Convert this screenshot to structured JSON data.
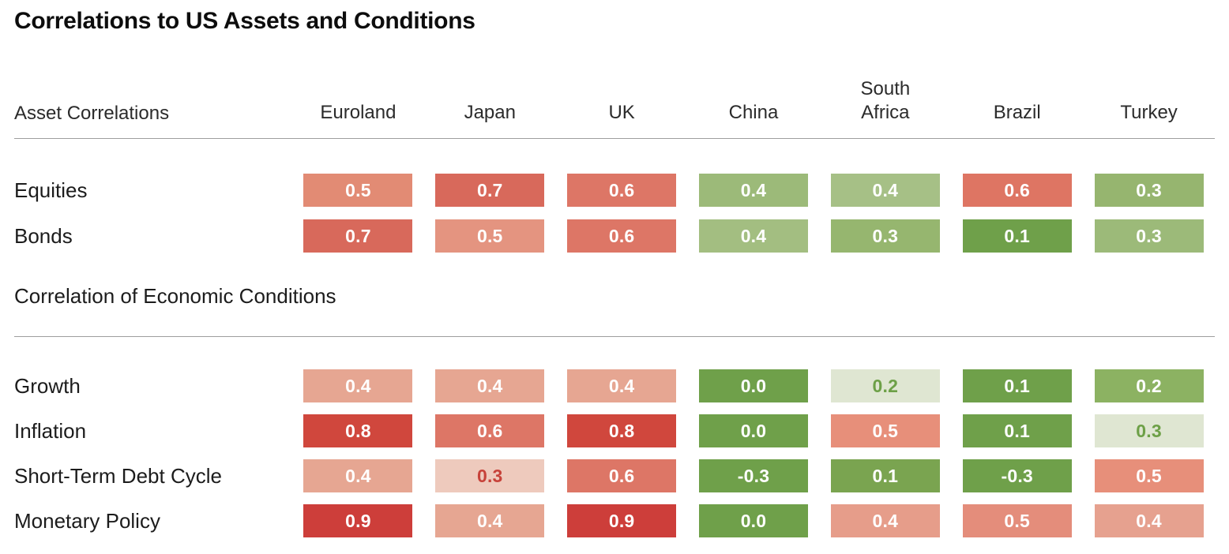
{
  "title": "Correlations to US Assets and Conditions",
  "colors": {
    "divider": "#9e9e9e",
    "cell_text_default": "#ffffff",
    "cell_text_green": "#6da047",
    "cell_text_red": "#c7423a"
  },
  "table": {
    "columns": [
      "Euroland",
      "Japan",
      "UK",
      "China",
      "South\nAfrica",
      "Brazil",
      "Turkey"
    ],
    "sections": [
      {
        "title": "Asset Correlations",
        "rows": [
          {
            "label": "Equities",
            "cells": [
              {
                "value": "0.5",
                "bg": "#e28b74"
              },
              {
                "value": "0.7",
                "bg": "#d8695b"
              },
              {
                "value": "0.6",
                "bg": "#dd7666"
              },
              {
                "value": "0.4",
                "bg": "#9cba79"
              },
              {
                "value": "0.4",
                "bg": "#a6c086"
              },
              {
                "value": "0.6",
                "bg": "#de7563"
              },
              {
                "value": "0.3",
                "bg": "#96b56f"
              }
            ]
          },
          {
            "label": "Bonds",
            "cells": [
              {
                "value": "0.7",
                "bg": "#d8695b"
              },
              {
                "value": "0.5",
                "bg": "#e49480"
              },
              {
                "value": "0.6",
                "bg": "#dd7666"
              },
              {
                "value": "0.4",
                "bg": "#a3be81"
              },
              {
                "value": "0.3",
                "bg": "#96b66f"
              },
              {
                "value": "0.1",
                "bg": "#6fa04a"
              },
              {
                "value": "0.3",
                "bg": "#9cba79"
              }
            ]
          }
        ]
      },
      {
        "title": "Correlation of Economic Conditions",
        "rows": [
          {
            "label": "Growth",
            "cells": [
              {
                "value": "0.4",
                "bg": "#e6a692"
              },
              {
                "value": "0.4",
                "bg": "#e6a692"
              },
              {
                "value": "0.4",
                "bg": "#e6a692"
              },
              {
                "value": "0.0",
                "bg": "#6fa04a"
              },
              {
                "value": "0.2",
                "bg": "#dfe6d2",
                "fg": "#6da047"
              },
              {
                "value": "0.1",
                "bg": "#6fa04a"
              },
              {
                "value": "0.2",
                "bg": "#8cb262"
              }
            ]
          },
          {
            "label": "Inflation",
            "cells": [
              {
                "value": "0.8",
                "bg": "#d0473d"
              },
              {
                "value": "0.6",
                "bg": "#dd7666"
              },
              {
                "value": "0.8",
                "bg": "#d0473d"
              },
              {
                "value": "0.0",
                "bg": "#6fa04a"
              },
              {
                "value": "0.5",
                "bg": "#e78f7a"
              },
              {
                "value": "0.1",
                "bg": "#6fa04a"
              },
              {
                "value": "0.3",
                "bg": "#dfe6d2",
                "fg": "#6da047"
              }
            ]
          },
          {
            "label": "Short-Term Debt Cycle",
            "cells": [
              {
                "value": "0.4",
                "bg": "#e6a692"
              },
              {
                "value": "0.3",
                "bg": "#eecabd",
                "fg": "#c7423a"
              },
              {
                "value": "0.6",
                "bg": "#dd7666"
              },
              {
                "value": "-0.3",
                "bg": "#6fa04a"
              },
              {
                "value": "0.1",
                "bg": "#7aa450"
              },
              {
                "value": "-0.3",
                "bg": "#6fa04a"
              },
              {
                "value": "0.5",
                "bg": "#e78f7a"
              }
            ]
          },
          {
            "label": "Monetary Policy",
            "cells": [
              {
                "value": "0.9",
                "bg": "#cd3e3a"
              },
              {
                "value": "0.4",
                "bg": "#e6a692"
              },
              {
                "value": "0.9",
                "bg": "#cd3e3a"
              },
              {
                "value": "0.0",
                "bg": "#6fa04a"
              },
              {
                "value": "0.4",
                "bg": "#e69d8a"
              },
              {
                "value": "0.5",
                "bg": "#e48d7b"
              },
              {
                "value": "0.4",
                "bg": "#e6a18f"
              }
            ]
          }
        ]
      }
    ]
  },
  "chart_data": {
    "type": "heatmap",
    "title": "Correlations to US Assets and Conditions",
    "columns": [
      "Euroland",
      "Japan",
      "UK",
      "China",
      "South Africa",
      "Brazil",
      "Turkey"
    ],
    "sections": [
      {
        "header": "Asset Correlations",
        "rows": [
          {
            "label": "Equities",
            "values": [
              0.5,
              0.7,
              0.6,
              0.4,
              0.4,
              0.6,
              0.3
            ]
          },
          {
            "label": "Bonds",
            "values": [
              0.7,
              0.5,
              0.6,
              0.4,
              0.3,
              0.1,
              0.3
            ]
          }
        ]
      },
      {
        "header": "Correlation of Economic Conditions",
        "rows": [
          {
            "label": "Growth",
            "values": [
              0.4,
              0.4,
              0.4,
              0.0,
              0.2,
              0.1,
              0.2
            ]
          },
          {
            "label": "Inflation",
            "values": [
              0.8,
              0.6,
              0.8,
              0.0,
              0.5,
              0.1,
              0.3
            ]
          },
          {
            "label": "Short-Term Debt Cycle",
            "values": [
              0.4,
              0.3,
              0.6,
              -0.3,
              0.1,
              -0.3,
              0.5
            ]
          },
          {
            "label": "Monetary Policy",
            "values": [
              0.9,
              0.4,
              0.9,
              0.0,
              0.4,
              0.5,
              0.4
            ]
          }
        ]
      }
    ],
    "legend": "red shades = higher positive correlation to US, green shades = low or negative correlation",
    "grid": false
  }
}
